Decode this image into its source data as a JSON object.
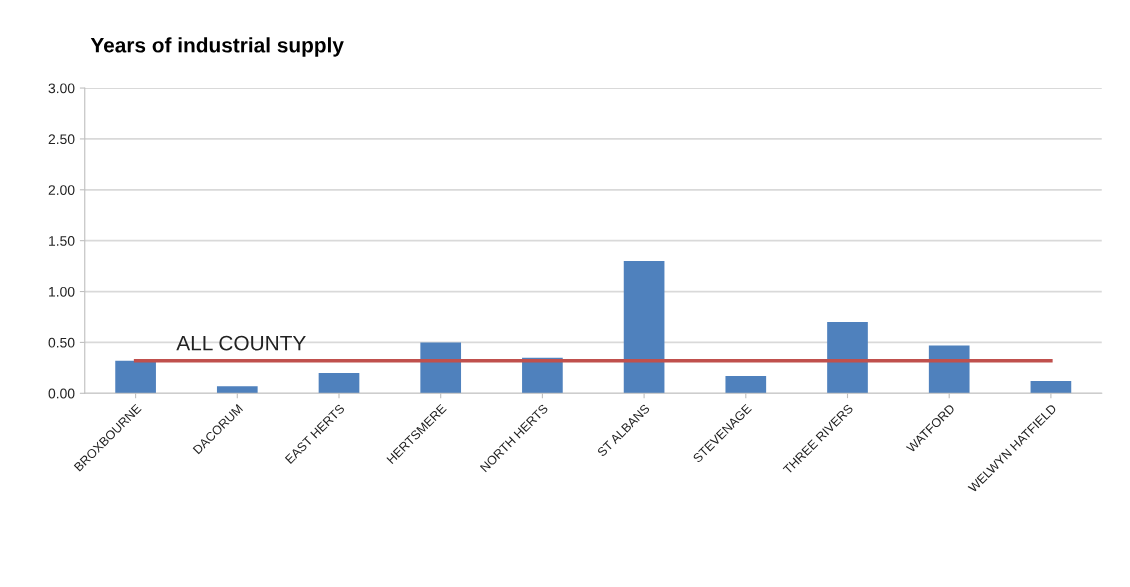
{
  "chart_data": {
    "type": "bar",
    "title": "Years of industrial supply",
    "categories": [
      "BROXBOURNE",
      "DACORUM",
      "EAST HERTS",
      "HERTSMERE",
      "NORTH HERTS",
      "ST ALBANS",
      "STEVENAGE",
      "THREE RIVERS",
      "WATFORD",
      "WELWYN HATFIELD"
    ],
    "series": [
      {
        "color": "#4f81bd",
        "values": [
          0.32,
          0.07,
          0.2,
          0.5,
          0.35,
          1.3,
          0.17,
          0.7,
          0.47,
          0.12
        ]
      },
      {
        "type": "line",
        "name": "ALL COUNTY",
        "color": "#c0504d",
        "values": [
          0.32,
          0.32,
          0.32,
          0.32,
          0.32,
          0.32,
          0.32,
          0.32,
          0.32,
          0.32
        ]
      }
    ],
    "ylim": [
      0,
      3
    ],
    "yticks": [
      {
        "value": 0,
        "label": "0.00"
      },
      {
        "value": 0.5,
        "label": "0.50"
      },
      {
        "value": 1,
        "label": "1.00"
      },
      {
        "value": 1.5,
        "label": "1.50"
      },
      {
        "value": 2,
        "label": "2.00"
      },
      {
        "value": 2.5,
        "label": "2.50"
      },
      {
        "value": 3,
        "label": "3.00"
      }
    ],
    "grid": "y",
    "legend": false
  }
}
